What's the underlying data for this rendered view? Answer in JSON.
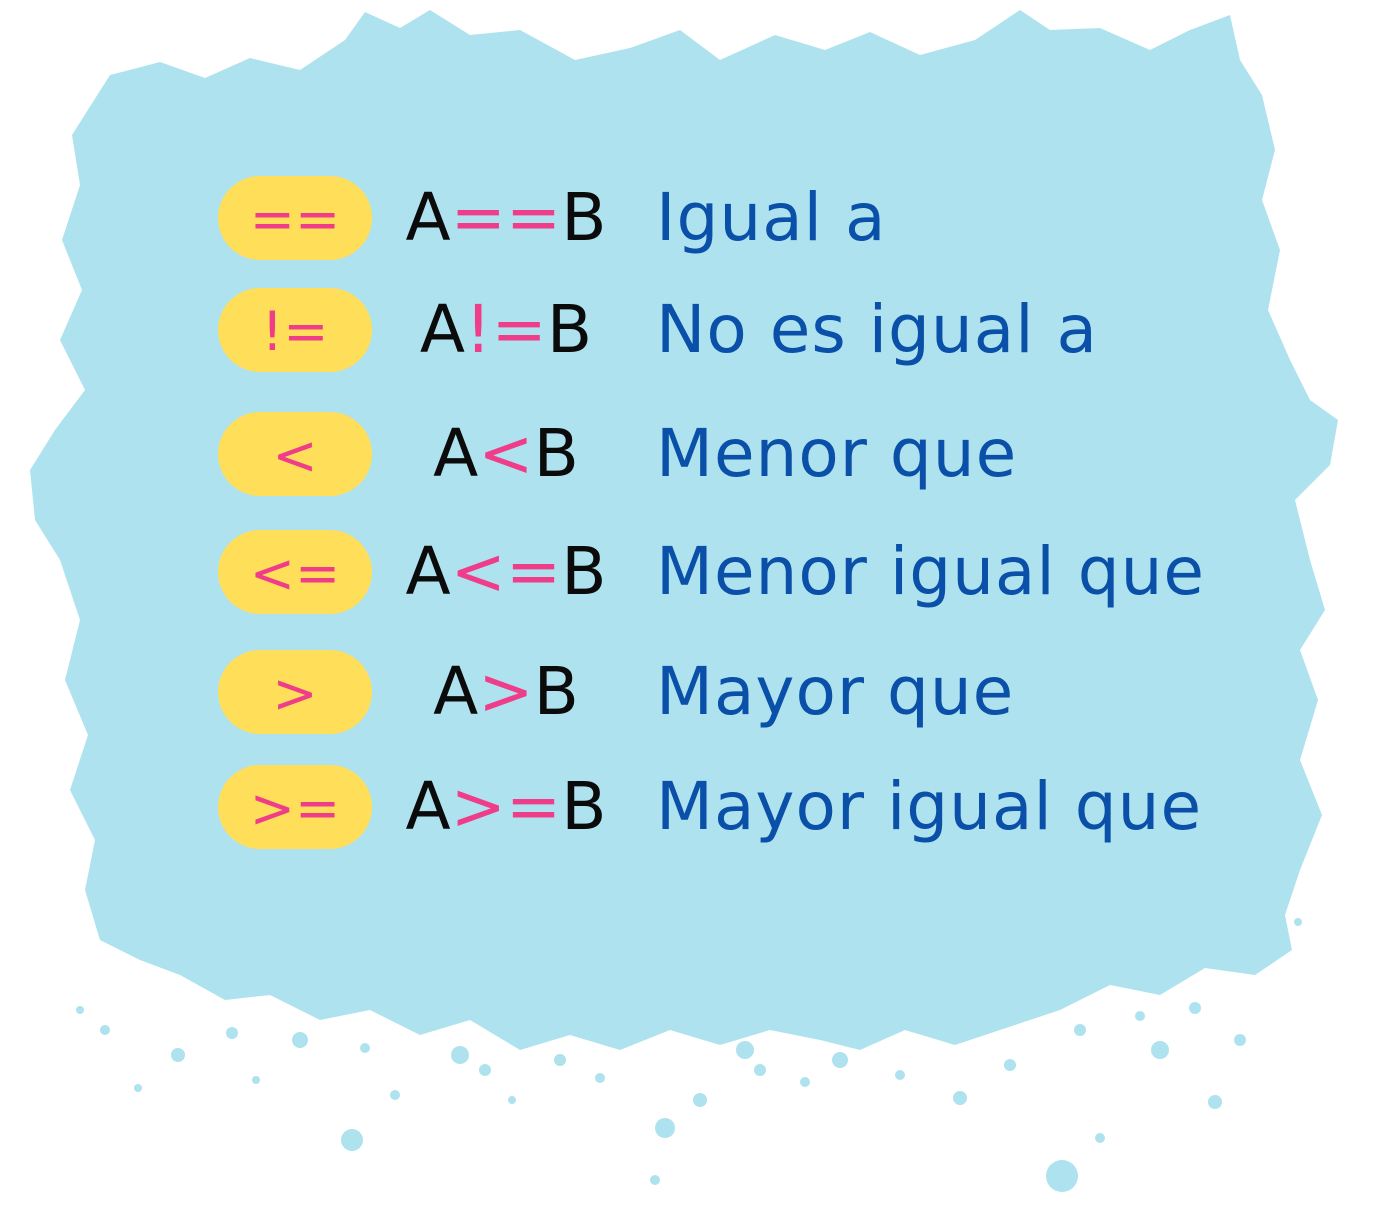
{
  "colors": {
    "background": "#ffffff",
    "blob": "#aee2ef",
    "pill": "#ffde59",
    "operator": "#ef3d8a",
    "operand": "#0b0b0b",
    "description": "#0a4fa8"
  },
  "operators": [
    {
      "symbol": "==",
      "left": "A",
      "op": "==",
      "right": "B",
      "description": "Igual a"
    },
    {
      "symbol": "!=",
      "left": "A",
      "op": "!=",
      "right": "B",
      "description": "No es igual a"
    },
    {
      "symbol": "<",
      "left": "A",
      "op": "<",
      "right": "B",
      "description": "Menor que"
    },
    {
      "symbol": "<=",
      "left": "A",
      "op": "<=",
      "right": "B",
      "description": "Menor igual que"
    },
    {
      "symbol": ">",
      "left": "A",
      "op": ">",
      "right": "B",
      "description": "Mayor que"
    },
    {
      "symbol": ">=",
      "left": "A",
      "op": ">=",
      "right": "B",
      "description": "Mayor igual que"
    }
  ]
}
